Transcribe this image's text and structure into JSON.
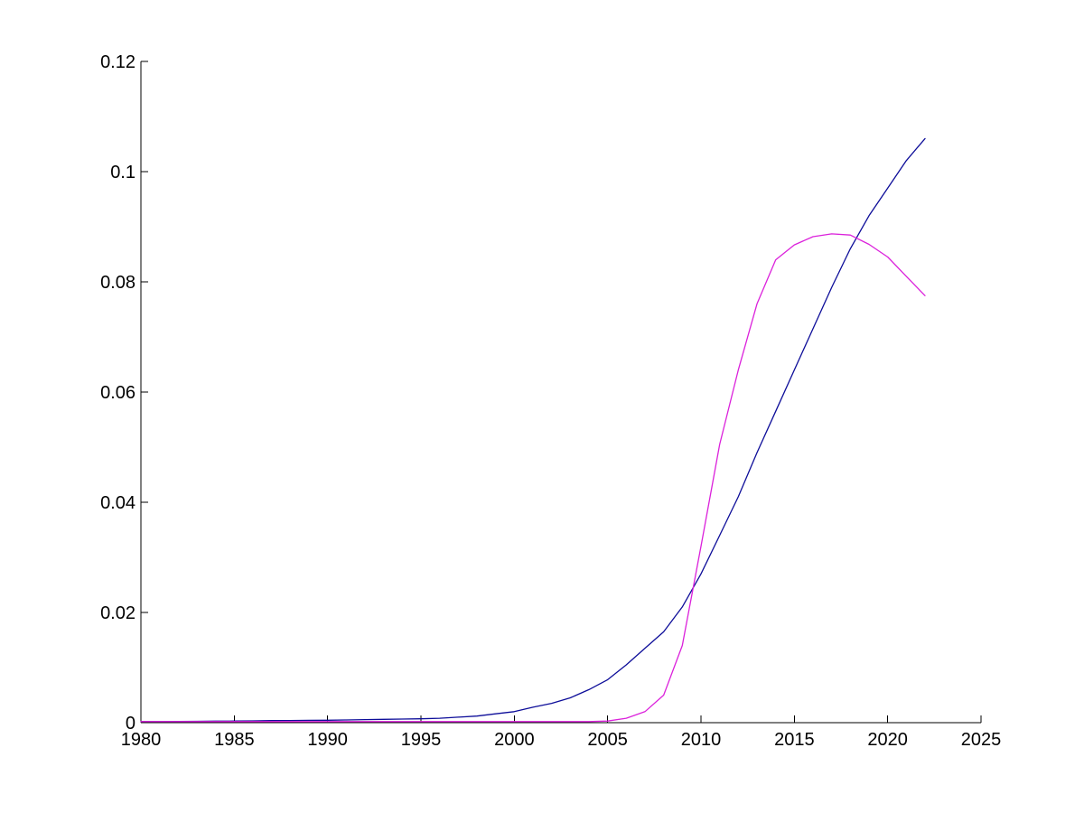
{
  "figure": {
    "background": "#ffffff",
    "axis_color": "#000000",
    "tick_label_color": "#000000"
  },
  "chart_data": {
    "type": "line",
    "title": "",
    "xlabel": "",
    "ylabel": "",
    "grid": false,
    "legend": "none",
    "xlim": [
      1980,
      2025
    ],
    "ylim": [
      0,
      0.12
    ],
    "x_tick_values": [
      1980,
      1985,
      1990,
      1995,
      2000,
      2005,
      2010,
      2015,
      2020,
      2025
    ],
    "x_tick_labels": [
      "1980",
      "1985",
      "1990",
      "1995",
      "2000",
      "2005",
      "2010",
      "2015",
      "2020",
      "2025"
    ],
    "y_tick_values": [
      0,
      0.02,
      0.04,
      0.06,
      0.08,
      0.1,
      0.12
    ],
    "y_tick_labels": [
      "0",
      "0.02",
      "0.04",
      "0.06",
      "0.08",
      "0.1",
      "0.12"
    ],
    "x": [
      1980,
      1981,
      1982,
      1983,
      1984,
      1985,
      1986,
      1987,
      1988,
      1989,
      1990,
      1991,
      1992,
      1993,
      1994,
      1995,
      1996,
      1997,
      1998,
      1999,
      2000,
      2001,
      2002,
      2003,
      2004,
      2005,
      2006,
      2007,
      2008,
      2009,
      2010,
      2011,
      2012,
      2013,
      2014,
      2015,
      2016,
      2017,
      2018,
      2019,
      2020,
      2021,
      2022
    ],
    "series": [
      {
        "name": "dark-blue-curve",
        "color": "#0D0D99",
        "values": [
          0.0002,
          0.0002,
          0.00022,
          0.00025,
          0.00028,
          0.0003,
          0.00033,
          0.00037,
          0.0004,
          0.00042,
          0.00045,
          0.0005,
          0.00055,
          0.0006,
          0.00065,
          0.0007,
          0.0008,
          0.001,
          0.0012,
          0.0016,
          0.002,
          0.0028,
          0.0035,
          0.0045,
          0.006,
          0.0078,
          0.0105,
          0.0135,
          0.0165,
          0.021,
          0.027,
          0.034,
          0.041,
          0.049,
          0.0565,
          0.064,
          0.0715,
          0.079,
          0.086,
          0.092,
          0.097,
          0.102,
          0.106
        ]
      },
      {
        "name": "magenta-curve",
        "color": "#DB21DB",
        "values": [
          0.0002,
          0.0002,
          0.0002,
          0.0002,
          0.0002,
          0.0002,
          0.0002,
          0.0002,
          0.0002,
          0.0002,
          0.0002,
          0.0002,
          0.0002,
          0.0002,
          0.0002,
          0.0002,
          0.0002,
          0.0002,
          0.0002,
          0.0002,
          0.0002,
          0.0002,
          0.0002,
          0.0002,
          0.0002,
          0.0003,
          0.0008,
          0.002,
          0.005,
          0.014,
          0.032,
          0.0505,
          0.064,
          0.076,
          0.084,
          0.0867,
          0.0882,
          0.0887,
          0.0885,
          0.0868,
          0.0845,
          0.081,
          0.0775
        ]
      }
    ]
  }
}
